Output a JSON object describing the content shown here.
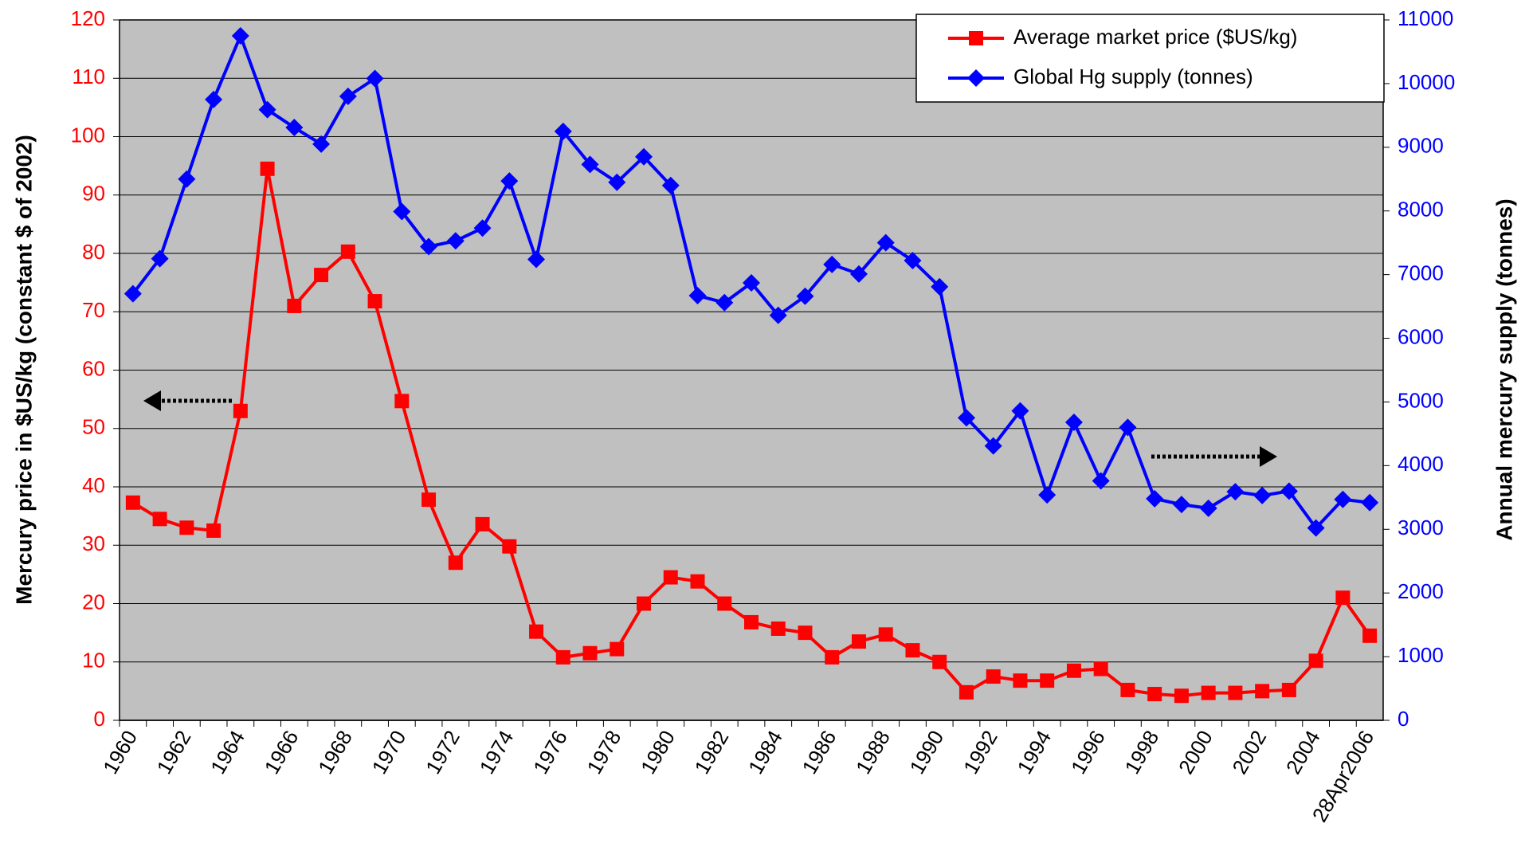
{
  "chart_data": {
    "type": "line",
    "categories": [
      "1960",
      null,
      "1962",
      null,
      "1964",
      null,
      "1966",
      null,
      "1968",
      null,
      "1970",
      null,
      "1972",
      null,
      "1974",
      null,
      "1976",
      null,
      "1978",
      null,
      "1980",
      null,
      "1982",
      null,
      "1984",
      null,
      "1986",
      null,
      "1988",
      null,
      "1990",
      null,
      "1992",
      null,
      "1994",
      null,
      "1996",
      null,
      "1998",
      null,
      "2000",
      null,
      "2002",
      null,
      "2004",
      null,
      "28Apr2006"
    ],
    "series": [
      {
        "name": "Average market price ($US/kg)",
        "color": "#ff0000",
        "marker": "square",
        "axis": "y",
        "values": [
          37.3,
          34.5,
          33,
          32.5,
          53,
          94.5,
          71,
          76.3,
          80.3,
          71.8,
          54.7,
          37.8,
          27,
          33.6,
          29.8,
          15.2,
          10.8,
          11.5,
          12.2,
          20,
          24.5,
          23.8,
          20,
          16.8,
          15.7,
          15,
          10.8,
          13.5,
          14.7,
          12,
          10,
          4.8,
          7.5,
          6.8,
          6.8,
          8.5,
          8.8,
          5.2,
          4.5,
          4.2,
          4.7,
          4.7,
          5,
          5.2,
          10.2,
          21,
          14.5
        ]
      },
      {
        "name": "Global Hg supply (tonnes)",
        "color": "#0000ff",
        "marker": "diamond",
        "axis": "y2",
        "values": [
          6700,
          7250,
          8500,
          9750,
          10750,
          9590,
          9310,
          9050,
          9800,
          10080,
          7990,
          7440,
          7530,
          7730,
          8470,
          7240,
          9250,
          8730,
          8450,
          8850,
          8400,
          6670,
          6560,
          6870,
          6360,
          6660,
          7160,
          7010,
          7500,
          7220,
          6810,
          4750,
          4310,
          4860,
          3540,
          4680,
          3760,
          4600,
          3480,
          3390,
          3330,
          3590,
          3530,
          3600,
          3020,
          3470,
          3420
        ]
      }
    ],
    "y_label": "Mercury price in $US/kg (constant $ of 2002)",
    "y2_label": "Annual mercury supply (tonnes)",
    "ylim": [
      0,
      120
    ],
    "yticks": [
      0,
      10,
      20,
      30,
      40,
      50,
      60,
      70,
      80,
      90,
      100,
      110,
      120
    ],
    "y2lim": [
      0,
      11000
    ],
    "y2ticks": [
      0,
      1000,
      2000,
      3000,
      4000,
      5000,
      6000,
      7000,
      8000,
      9000,
      10000,
      11000
    ],
    "grid": true,
    "legend": "upper right"
  }
}
